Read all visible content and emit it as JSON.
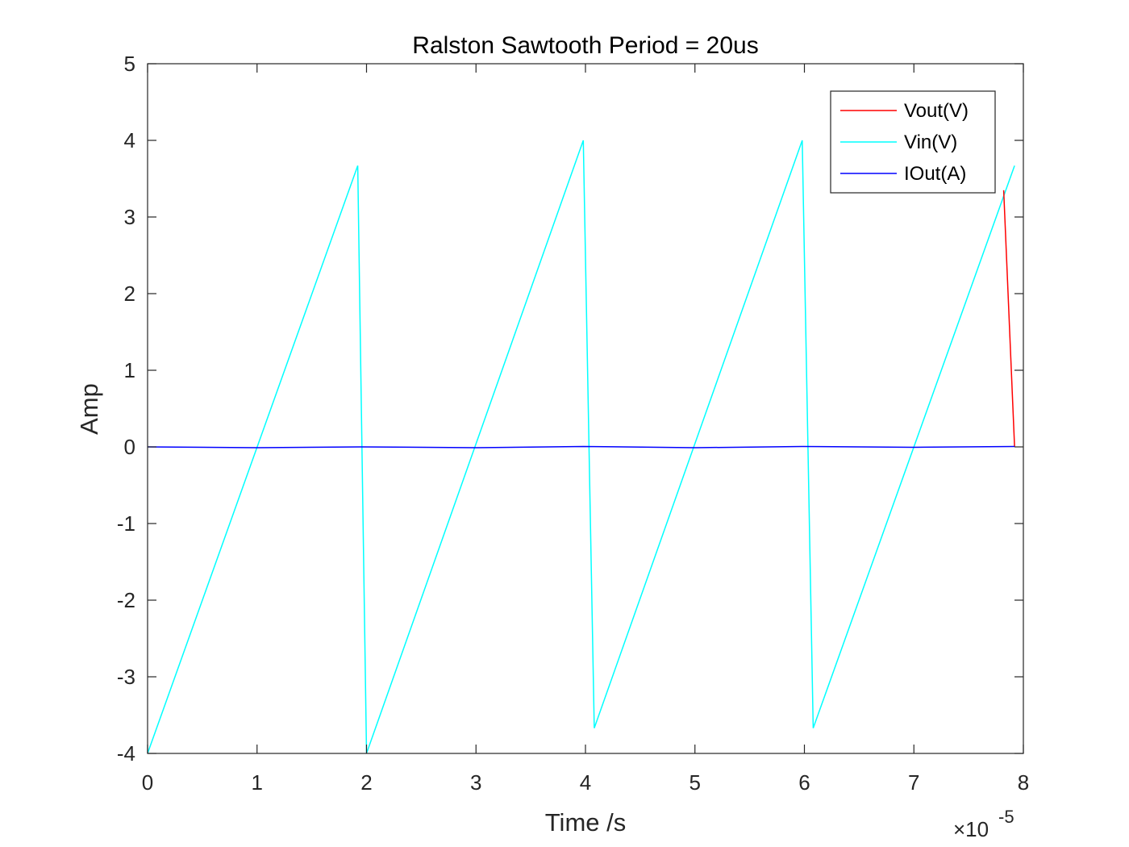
{
  "chart_data": {
    "type": "line",
    "title": "Ralston Sawtooth Period = 20us",
    "xlabel": "Time /s",
    "ylabel": "Amp",
    "xlim": [
      0,
      8e-05
    ],
    "ylim": [
      -4,
      5
    ],
    "x_ticks": [
      0,
      1,
      2,
      3,
      4,
      5,
      6,
      7,
      8
    ],
    "x_tick_labels": [
      "0",
      "1",
      "2",
      "3",
      "4",
      "5",
      "6",
      "7",
      "8"
    ],
    "y_ticks": [
      -4,
      -3,
      -2,
      -1,
      0,
      1,
      2,
      3,
      4,
      5
    ],
    "y_tick_labels": [
      "-4",
      "-3",
      "-2",
      "-1",
      "0",
      "1",
      "2",
      "3",
      "4",
      "5"
    ],
    "x_multiplier": {
      "base": "×10",
      "exponent": "-5"
    },
    "grid": false,
    "legend_position": "top-right",
    "series": [
      {
        "name": "Vout(V)",
        "color": "#ff0000",
        "x": [
          7.82e-05,
          7.92e-05
        ],
        "y": [
          3.35,
          0.0
        ]
      },
      {
        "name": "Vin(V)",
        "color": "#00ffff",
        "x": [
          0,
          1.92e-05,
          2e-05,
          3.98e-05,
          4.08e-05,
          5.98e-05,
          6.08e-05,
          7.92e-05
        ],
        "y": [
          -4.0,
          3.67,
          -4.0,
          4.0,
          -3.67,
          4.0,
          -3.67,
          3.67
        ]
      },
      {
        "name": "IOut(A)",
        "color": "#0000ff",
        "x": [
          0,
          1e-05,
          1.95e-05,
          3e-05,
          3.98e-05,
          5e-05,
          5.98e-05,
          7e-05,
          7.92e-05
        ],
        "y": [
          0.0,
          -0.01,
          0.0,
          -0.01,
          0.005,
          -0.01,
          0.005,
          -0.005,
          0.005
        ]
      }
    ]
  }
}
